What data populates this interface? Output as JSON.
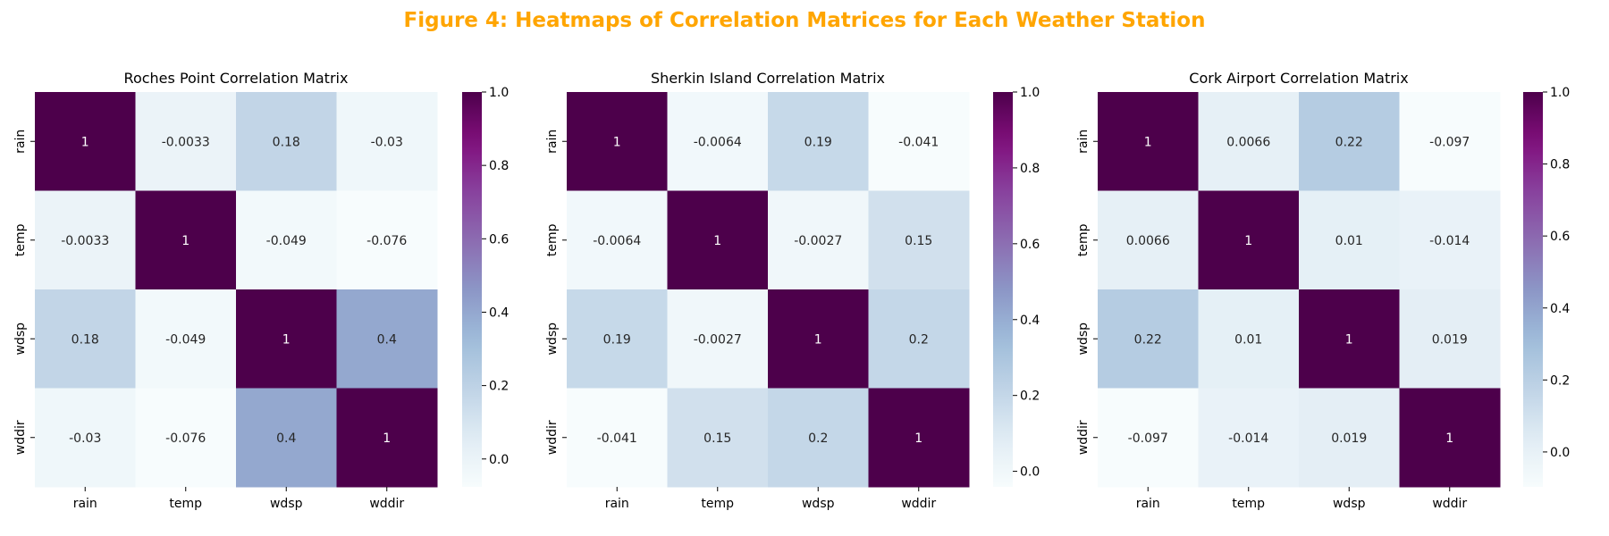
{
  "figure": {
    "title": "Figure 4: Heatmaps of Correlation Matrices for Each Weather Station",
    "title_color": "#FFA500"
  },
  "colormap": {
    "name": "BuPu",
    "stops": [
      "#f7fcfd",
      "#e0ecf4",
      "#bfd3e6",
      "#9ebcda",
      "#8c96c6",
      "#8c6bb1",
      "#88419d",
      "#810f7c",
      "#4d004b"
    ]
  },
  "chart_data": [
    {
      "type": "heatmap",
      "title": "Roches Point Correlation Matrix",
      "x_labels": [
        "rain",
        "temp",
        "wdsp",
        "wddir"
      ],
      "y_labels": [
        "rain",
        "temp",
        "wdsp",
        "wddir"
      ],
      "matrix": [
        [
          1,
          -0.0033,
          0.18,
          -0.03
        ],
        [
          -0.0033,
          1,
          -0.049,
          -0.076
        ],
        [
          0.18,
          -0.049,
          1,
          0.4
        ],
        [
          -0.03,
          -0.076,
          0.4,
          1
        ]
      ],
      "annotations": [
        [
          "1",
          "-0.0033",
          "0.18",
          "-0.03"
        ],
        [
          "-0.0033",
          "1",
          "-0.049",
          "-0.076"
        ],
        [
          "0.18",
          "-0.049",
          "1",
          "0.4"
        ],
        [
          "-0.03",
          "-0.076",
          "0.4",
          "1"
        ]
      ],
      "vmin": -0.076,
      "vmax": 1,
      "colorbar_ticks": [
        "0.0",
        "0.2",
        "0.4",
        "0.6",
        "0.8",
        "1.0"
      ],
      "colorbar_tick_values": [
        0,
        0.2,
        0.4,
        0.6,
        0.8,
        1.0
      ]
    },
    {
      "type": "heatmap",
      "title": "Sherkin Island Correlation Matrix",
      "x_labels": [
        "rain",
        "temp",
        "wdsp",
        "wddir"
      ],
      "y_labels": [
        "rain",
        "temp",
        "wdsp",
        "wddir"
      ],
      "matrix": [
        [
          1,
          -0.0064,
          0.19,
          -0.041
        ],
        [
          -0.0064,
          1,
          -0.0027,
          0.15
        ],
        [
          0.19,
          -0.0027,
          1,
          0.2
        ],
        [
          -0.041,
          0.15,
          0.2,
          1
        ]
      ],
      "annotations": [
        [
          "1",
          "-0.0064",
          "0.19",
          "-0.041"
        ],
        [
          "-0.0064",
          "1",
          "-0.0027",
          "0.15"
        ],
        [
          "0.19",
          "-0.0027",
          "1",
          "0.2"
        ],
        [
          "-0.041",
          "0.15",
          "0.2",
          "1"
        ]
      ],
      "vmin": -0.041,
      "vmax": 1,
      "colorbar_ticks": [
        "0.0",
        "0.2",
        "0.4",
        "0.6",
        "0.8",
        "1.0"
      ],
      "colorbar_tick_values": [
        0,
        0.2,
        0.4,
        0.6,
        0.8,
        1.0
      ]
    },
    {
      "type": "heatmap",
      "title": "Cork Airport Correlation Matrix",
      "x_labels": [
        "rain",
        "temp",
        "wdsp",
        "wddir"
      ],
      "y_labels": [
        "rain",
        "temp",
        "wdsp",
        "wddir"
      ],
      "matrix": [
        [
          1,
          0.0066,
          0.22,
          -0.097
        ],
        [
          0.0066,
          1,
          0.01,
          -0.014
        ],
        [
          0.22,
          0.01,
          1,
          0.019
        ],
        [
          -0.097,
          -0.014,
          0.019,
          1
        ]
      ],
      "annotations": [
        [
          "1",
          "0.0066",
          "0.22",
          "-0.097"
        ],
        [
          "0.0066",
          "1",
          "0.01",
          "-0.014"
        ],
        [
          "0.22",
          "0.01",
          "1",
          "0.019"
        ],
        [
          "-0.097",
          "-0.014",
          "0.019",
          "1"
        ]
      ],
      "vmin": -0.097,
      "vmax": 1,
      "colorbar_ticks": [
        "0.0",
        "0.2",
        "0.4",
        "0.6",
        "0.8",
        "1.0"
      ],
      "colorbar_tick_values": [
        0,
        0.2,
        0.4,
        0.6,
        0.8,
        1.0
      ]
    }
  ]
}
